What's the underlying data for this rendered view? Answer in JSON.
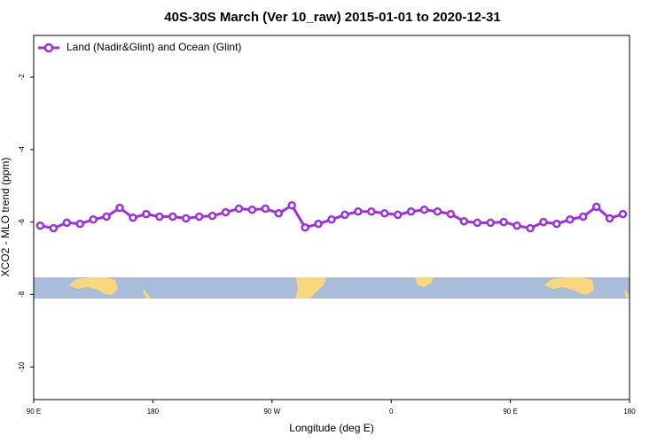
{
  "chart_data": {
    "type": "line",
    "title": "40S-30S March (Ver 10_raw)   2015-01-01 to 2020-12-31",
    "x_label": "Longitude (deg E)",
    "y_label": "XCO2 - MLO trend (ppm)",
    "xlim": [
      90,
      540
    ],
    "xticks": [
      {
        "value": 90,
        "label": "90 E"
      },
      180,
      {
        "value": 270,
        "label": "90 W"
      },
      {
        "value": 360,
        "label": "0"
      },
      {
        "value": 450,
        "label": "90 E"
      },
      {
        "value": 540,
        "label": "180"
      }
    ],
    "ylim": [
      -10.9,
      -0.85
    ],
    "yticks": [
      -2,
      -4,
      -6,
      -8,
      -10
    ],
    "legend": "upper left",
    "x": [
      95,
      105,
      115,
      125,
      135,
      145,
      155,
      165,
      175,
      185,
      195,
      205,
      215,
      225,
      235,
      245,
      255,
      265,
      275,
      285,
      295,
      305,
      315,
      325,
      335,
      345,
      355,
      365,
      375,
      385,
      395,
      405,
      415,
      425,
      435,
      445,
      455,
      465,
      475,
      485,
      495,
      505,
      515,
      525,
      535
    ],
    "series": [
      {
        "name": "Land (Nadir&Glint) and Ocean (Glint)",
        "color": "#9b30e0",
        "values": [
          -6.1,
          -6.17,
          -6.02,
          -6.05,
          -5.93,
          -5.85,
          -5.61,
          -5.88,
          -5.78,
          -5.85,
          -5.85,
          -5.9,
          -5.85,
          -5.83,
          -5.73,
          -5.63,
          -5.66,
          -5.63,
          -5.76,
          -5.54,
          -6.15,
          -6.05,
          -5.93,
          -5.8,
          -5.71,
          -5.71,
          -5.76,
          -5.8,
          -5.71,
          -5.66,
          -5.71,
          -5.78,
          -5.98,
          -6.02,
          -6.02,
          -6.0,
          -6.1,
          -6.17,
          -6.0,
          -6.05,
          -5.93,
          -5.85,
          -5.58,
          -5.9,
          -5.78
        ]
      }
    ]
  }
}
